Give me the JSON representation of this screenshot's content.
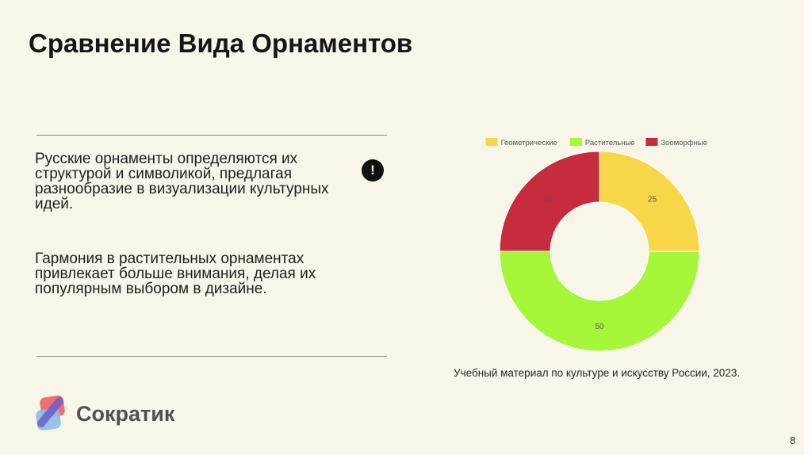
{
  "slide": {
    "title": "Сравнение Вида Орнаментов",
    "paragraph_1": "Русские орнаменты определяются их структурой и символикой, предлагая разнообразие в визуализации культурных идей.",
    "paragraph_2": "Гармония в растительных орнаментах привлекает больше внимания, делая их популярным выбором в дизайне.",
    "alert_glyph": "!",
    "source": "Учебный материал по культуре и искусству России, 2023.",
    "brand": "Сократик",
    "page_number": "8"
  },
  "chart_data": {
    "type": "pie",
    "variant": "doughnut",
    "categories": [
      "Геометрические",
      "Растительные",
      "Зооморфные"
    ],
    "values": [
      25,
      50,
      25
    ],
    "colors": [
      "#f7d748",
      "#a6f63a",
      "#c62c3e"
    ],
    "data_labels": [
      "25",
      "50",
      "25"
    ],
    "legend_position": "top"
  }
}
